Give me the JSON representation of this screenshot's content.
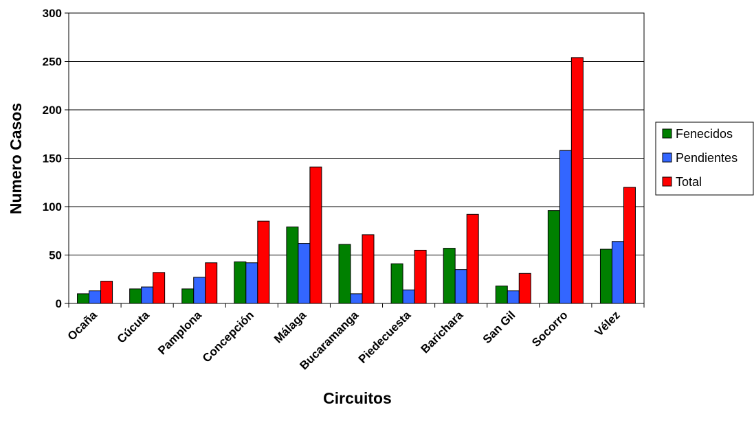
{
  "chart_data": {
    "type": "bar",
    "categories": [
      "Ocaña",
      "Cúcuta",
      "Pamplona",
      "Concepción",
      "Málaga",
      "Bucaramanga",
      "Piedecuesta",
      "Barichara",
      "San Gil",
      "Socorro",
      "Vélez"
    ],
    "series": [
      {
        "name": "Fenecidos",
        "color": "#008000",
        "values": [
          10,
          15,
          15,
          43,
          79,
          61,
          41,
          57,
          18,
          96,
          56
        ]
      },
      {
        "name": "Pendientes",
        "color": "#3366ff",
        "values": [
          13,
          17,
          27,
          42,
          62,
          10,
          14,
          35,
          13,
          158,
          64
        ]
      },
      {
        "name": "Total",
        "color": "#ff0000",
        "values": [
          23,
          32,
          42,
          85,
          141,
          71,
          55,
          92,
          31,
          254,
          120
        ]
      }
    ],
    "title": "",
    "xlabel": "Circuitos",
    "ylabel": "Numero Casos",
    "ylim": [
      0,
      300
    ],
    "yticks": [
      0,
      50,
      100,
      150,
      200,
      250,
      300
    ],
    "grid": true,
    "legend_position": "right"
  }
}
